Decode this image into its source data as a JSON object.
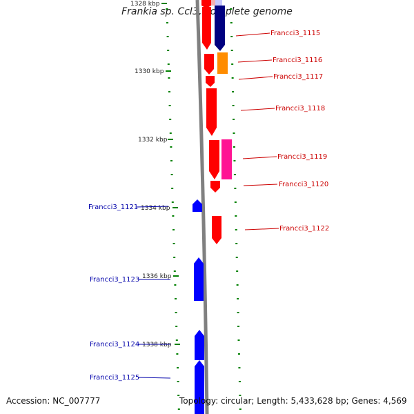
{
  "title": "Frankia sp. CcI3, complete genome",
  "accession": "Accession: NC_007777",
  "summary": "Topology: circular; Length: 5,433,628 bp; Genes: 4,569",
  "colors": {
    "backbone": "#808080",
    "tick": "#008000",
    "forward_label": "#cc0000",
    "reverse_label": "#0000aa",
    "gene_red": "#ff0000",
    "gene_navy": "#000080",
    "gene_orange": "#ff8c00",
    "gene_pink": "#ff1493",
    "gene_blue": "#0000ff"
  },
  "scale_labels": [
    "1328 kbp",
    "1330 kbp",
    "1332 kbp",
    "1334 kbp",
    "1336 kbp",
    "1338 kbp"
  ],
  "forward_genes": [
    "Francci3_1115",
    "Francci3_1116",
    "Francci3_1117",
    "Francci3_1118",
    "Francci3_1119",
    "Francci3_1120",
    "Francci3_1122"
  ],
  "reverse_genes": [
    "Francci3_1121",
    "Francci3_1123",
    "Francci3_1124",
    "Francci3_1125"
  ]
}
